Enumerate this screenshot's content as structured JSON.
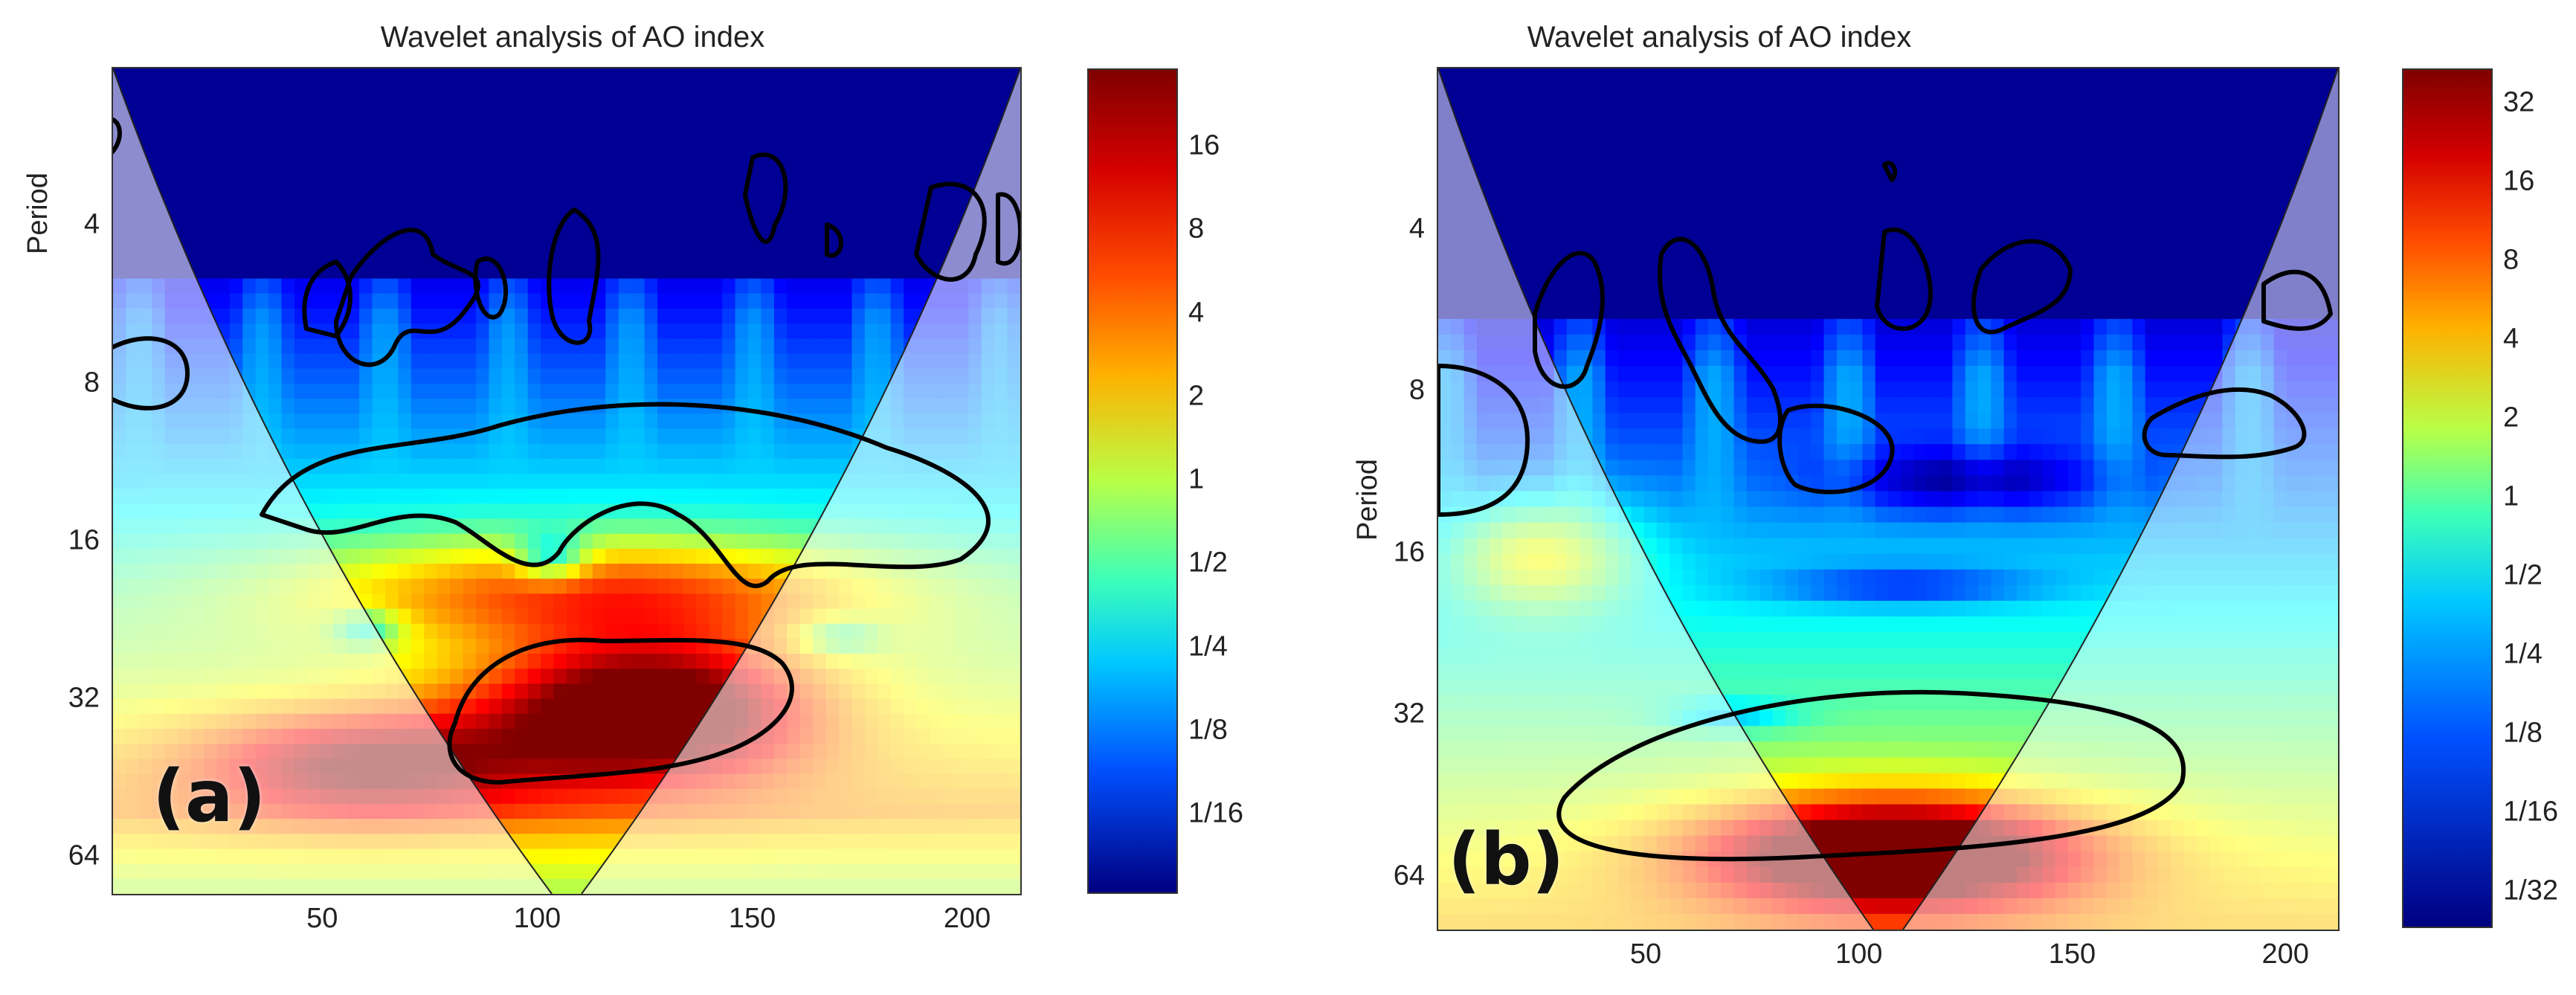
{
  "chart_data": [
    {
      "type": "heatmap",
      "panel_label": "(a)",
      "title": "Wavelet analysis of AO index",
      "xlabel": "",
      "ylabel": "Period",
      "xlim": [
        1,
        212
      ],
      "ylim": [
        2,
        75
      ],
      "yscale": "log2",
      "xticks": [
        50,
        100,
        150,
        200
      ],
      "yticks": [
        4,
        8,
        16,
        32,
        64
      ],
      "ytick_labels": [
        "4",
        "8",
        "16",
        "32",
        "64"
      ],
      "colorbar_ticks": [
        "16",
        "8",
        "4",
        "2",
        "1",
        "1/2",
        "1/4",
        "1/8",
        "1/16"
      ],
      "colormap": "jet",
      "cone_of_influence": true,
      "power_regions": [
        {
          "x": 125,
          "period": 33,
          "level": "max"
        },
        {
          "x": 130,
          "period": 20,
          "level": "high"
        },
        {
          "x": 40,
          "period": 40,
          "level": "high"
        }
      ]
    },
    {
      "type": "heatmap",
      "panel_label": "(b)",
      "title": "Wavelet analysis of AO index",
      "xlabel": "",
      "ylabel": "Period",
      "xlim": [
        1,
        212
      ],
      "ylim": [
        2,
        80
      ],
      "yscale": "log2",
      "xticks": [
        50,
        100,
        150,
        200
      ],
      "yticks": [
        4,
        8,
        16,
        32,
        64
      ],
      "ytick_labels": [
        "4",
        "8",
        "16",
        "32",
        "64"
      ],
      "colorbar_ticks": [
        "32",
        "16",
        "8",
        "4",
        "2",
        "1",
        "1/2",
        "1/4",
        "1/8",
        "1/16",
        "1/32"
      ],
      "colormap": "jet",
      "cone_of_influence": true,
      "power_regions": [
        {
          "x": 110,
          "period": 55,
          "level": "max"
        },
        {
          "x": 25,
          "period": 16,
          "level": "mid"
        }
      ]
    }
  ]
}
